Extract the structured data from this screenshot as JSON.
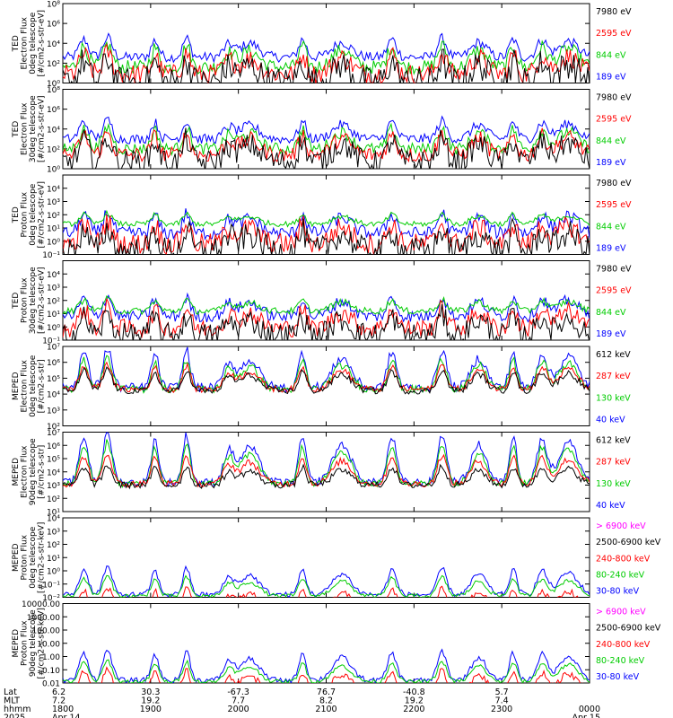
{
  "chart_data": [
    {
      "type": "line",
      "instrument": "TED",
      "ylabel": [
        "TED",
        "Electron Flux",
        "0deg telescope",
        "[#/cm2-s-str-eV]"
      ],
      "log": true,
      "ylim": [
        1,
        100000000
      ],
      "ticks": [
        {
          "v": 1,
          "label": "10⁰"
        },
        {
          "v": 100,
          "label": "10²"
        },
        {
          "v": 10000,
          "label": "10⁴"
        },
        {
          "v": 1000000,
          "label": "10⁶"
        },
        {
          "v": 100000000,
          "label": "10⁸"
        }
      ],
      "series": [
        {
          "name": "7980 eV",
          "color": "#000000",
          "base": 0.1,
          "amp": 2.3,
          "noise": 1.5
        },
        {
          "name": "2595 eV",
          "color": "#ff0000",
          "base": 0.9,
          "amp": 2.2,
          "noise": 1.0
        },
        {
          "name": "844 eV",
          "color": "#00cc00",
          "base": 1.6,
          "amp": 2.3,
          "noise": 0.7
        },
        {
          "name": "189 eV",
          "color": "#0000ff",
          "base": 2.6,
          "amp": 2.0,
          "noise": 0.5
        }
      ]
    },
    {
      "type": "line",
      "instrument": "TED",
      "ylabel": [
        "TED",
        "Electron Flux",
        "30deg telescope",
        "[#/cm2-s-str-eV]"
      ],
      "log": true,
      "ylim": [
        1,
        100000000
      ],
      "ticks": [
        {
          "v": 1,
          "label": "10⁰"
        },
        {
          "v": 100,
          "label": "10²"
        },
        {
          "v": 10000,
          "label": "10⁴"
        },
        {
          "v": 1000000,
          "label": "10⁶"
        },
        {
          "v": 100000000,
          "label": "10⁸"
        }
      ],
      "series": [
        {
          "name": "7980 eV",
          "color": "#000000",
          "base": 0.7,
          "amp": 2.4,
          "noise": 1.2
        },
        {
          "name": "2595 eV",
          "color": "#ff0000",
          "base": 1.4,
          "amp": 2.2,
          "noise": 0.8
        },
        {
          "name": "844 eV",
          "color": "#00cc00",
          "base": 2.0,
          "amp": 2.2,
          "noise": 0.6
        },
        {
          "name": "189 eV",
          "color": "#0000ff",
          "base": 3.0,
          "amp": 1.9,
          "noise": 0.5
        }
      ]
    },
    {
      "type": "line",
      "instrument": "TED",
      "ylabel": [
        "TED",
        "Proton Flux",
        "0deg telescope",
        "[#/cm2-s-str-eV]"
      ],
      "log": true,
      "ylim": [
        0.1,
        100000
      ],
      "ticks": [
        {
          "v": 0.1,
          "label": "10⁻¹"
        },
        {
          "v": 1,
          "label": "10⁰"
        },
        {
          "v": 10,
          "label": "10¹"
        },
        {
          "v": 100,
          "label": "10²"
        },
        {
          "v": 1000,
          "label": "10³"
        },
        {
          "v": 10000,
          "label": "10⁴"
        }
      ],
      "series": [
        {
          "name": "7980 eV",
          "color": "#000000",
          "base": 0.3,
          "amp": 1.6,
          "noise": 1.0
        },
        {
          "name": "2595 eV",
          "color": "#ff0000",
          "base": 0.8,
          "amp": 1.7,
          "noise": 0.8
        },
        {
          "name": "844 eV",
          "color": "#00cc00",
          "base": 2.3,
          "amp": 0.8,
          "noise": 0.2
        },
        {
          "name": "189 eV",
          "color": "#0000ff",
          "base": 1.6,
          "amp": 1.6,
          "noise": 0.5
        }
      ]
    },
    {
      "type": "line",
      "instrument": "TED",
      "ylabel": [
        "TED",
        "Proton Flux",
        "30deg telescope",
        "[#/cm2-s-str-eV]"
      ],
      "log": true,
      "ylim": [
        0.1,
        100000
      ],
      "ticks": [
        {
          "v": 0.1,
          "label": "10⁻¹"
        },
        {
          "v": 1,
          "label": "10⁰"
        },
        {
          "v": 10,
          "label": "10¹"
        },
        {
          "v": 100,
          "label": "10²"
        },
        {
          "v": 1000,
          "label": "10³"
        },
        {
          "v": 10000,
          "label": "10⁴"
        }
      ],
      "series": [
        {
          "name": "7980 eV",
          "color": "#000000",
          "base": 0.4,
          "amp": 1.5,
          "noise": 0.9
        },
        {
          "name": "2595 eV",
          "color": "#ff0000",
          "base": 0.9,
          "amp": 1.6,
          "noise": 0.7
        },
        {
          "name": "844 eV",
          "color": "#00cc00",
          "base": 2.2,
          "amp": 0.9,
          "noise": 0.25
        },
        {
          "name": "189 eV",
          "color": "#0000ff",
          "base": 1.8,
          "amp": 1.5,
          "noise": 0.45
        }
      ]
    },
    {
      "type": "line",
      "instrument": "MEPED",
      "ylabel": [
        "MEPED",
        "Electron Flux",
        "0deg telescope",
        "[#/cm2-s-str]"
      ],
      "log": true,
      "ylim": [
        100,
        10000000
      ],
      "ticks": [
        {
          "v": 100,
          "label": "10²"
        },
        {
          "v": 1000,
          "label": "10³"
        },
        {
          "v": 10000,
          "label": "10⁴"
        },
        {
          "v": 100000,
          "label": "10⁵"
        },
        {
          "v": 1000000,
          "label": "10⁶"
        },
        {
          "v": 10000000,
          "label": "10⁷"
        }
      ],
      "series": [
        {
          "name": "612 keV",
          "color": "#000000",
          "base": 2.2,
          "amp": 1.4,
          "noise": 0.2
        },
        {
          "name": "287 keV",
          "color": "#ff0000",
          "base": 2.3,
          "amp": 1.6,
          "noise": 0.2
        },
        {
          "name": "130 keV",
          "color": "#00cc00",
          "base": 2.3,
          "amp": 2.0,
          "noise": 0.25
        },
        {
          "name": "40 keV",
          "color": "#0000ff",
          "base": 2.4,
          "amp": 2.5,
          "noise": 0.3
        }
      ]
    },
    {
      "type": "line",
      "instrument": "MEPED",
      "ylabel": [
        "MEPED",
        "Electron Flux",
        "90deg telescope",
        "[#/cm2-s-str]"
      ],
      "log": true,
      "ylim": [
        10,
        10000000
      ],
      "ticks": [
        {
          "v": 10,
          "label": "10¹"
        },
        {
          "v": 100,
          "label": "10²"
        },
        {
          "v": 1000,
          "label": "10³"
        },
        {
          "v": 10000,
          "label": "10⁴"
        },
        {
          "v": 100000,
          "label": "10⁵"
        },
        {
          "v": 1000000,
          "label": "10⁶"
        },
        {
          "v": 10000000,
          "label": "10⁷"
        }
      ],
      "series": [
        {
          "name": "612 keV",
          "color": "#000000",
          "base": 2.0,
          "amp": 1.5,
          "noise": 0.25
        },
        {
          "name": "287 keV",
          "color": "#ff0000",
          "base": 2.1,
          "amp": 2.3,
          "noise": 0.25
        },
        {
          "name": "130 keV",
          "color": "#00cc00",
          "base": 2.1,
          "amp": 3.2,
          "noise": 0.25
        },
        {
          "name": "40 keV",
          "color": "#0000ff",
          "base": 2.2,
          "amp": 3.8,
          "noise": 0.3
        }
      ]
    },
    {
      "type": "line",
      "instrument": "MEPED",
      "ylabel": [
        "MEPED",
        "Proton Flux",
        "0deg telescope",
        "[#/cm2-s-str-keV]"
      ],
      "log": true,
      "ylim": [
        0.01,
        10000
      ],
      "ticks": [
        {
          "v": 0.01,
          "label": "10⁻²"
        },
        {
          "v": 0.1,
          "label": "10⁻¹"
        },
        {
          "v": 1,
          "label": "10⁰"
        },
        {
          "v": 10,
          "label": "10¹"
        },
        {
          "v": 100,
          "label": "10²"
        },
        {
          "v": 1000,
          "label": "10³"
        },
        {
          "v": 10000,
          "label": "10⁴"
        }
      ],
      "series": [
        {
          "name": "> 6900 keV",
          "color": "#ff00ff",
          "base": -1.9,
          "amp": 0.7,
          "noise": 0.1
        },
        {
          "name": "2500-6900 keV",
          "color": "#000000",
          "base": -1.4,
          "amp": 1.0,
          "noise": 0.2
        },
        {
          "name": "240-800 keV",
          "color": "#ff0000",
          "base": -0.8,
          "amp": 1.5,
          "noise": 0.25
        },
        {
          "name": "80-240 keV",
          "color": "#00cc00",
          "base": 0.1,
          "amp": 1.5,
          "noise": 0.15
        },
        {
          "name": "30-80 keV",
          "color": "#0000ff",
          "base": 0.2,
          "amp": 2.1,
          "noise": 0.2
        }
      ]
    },
    {
      "type": "line",
      "instrument": "MEPED",
      "ylabel": [
        "MEPED",
        "Proton Flux",
        "90deg telescope",
        "[#/cm2-s-str-keV]"
      ],
      "log": true,
      "ylim": [
        0.01,
        10000
      ],
      "ticks": [
        {
          "v": 0.01,
          "label": "0.01"
        },
        {
          "v": 0.1,
          "label": "0.10"
        },
        {
          "v": 1,
          "label": "1.00"
        },
        {
          "v": 10,
          "label": "10.00"
        },
        {
          "v": 100,
          "label": "100.00"
        },
        {
          "v": 1000,
          "label": "1000.00"
        },
        {
          "v": 10000,
          "label": "10000.00"
        }
      ],
      "series": [
        {
          "name": "> 6900 keV",
          "color": "#ff00ff",
          "base": -1.8,
          "amp": 0.8,
          "noise": 0.1
        },
        {
          "name": "2500-6900 keV",
          "color": "#000000",
          "base": -1.3,
          "amp": 1.1,
          "noise": 0.2
        },
        {
          "name": "240-800 keV",
          "color": "#ff0000",
          "base": -0.6,
          "amp": 1.6,
          "noise": 0.25
        },
        {
          "name": "80-240 keV",
          "color": "#00cc00",
          "base": 0.1,
          "amp": 1.6,
          "noise": 0.15
        },
        {
          "name": "30-80 keV",
          "color": "#0000ff",
          "base": 0.2,
          "amp": 2.3,
          "noise": 0.2
        }
      ]
    }
  ],
  "passes": [
    {
      "center": 0.04,
      "width": 0.012,
      "strength": 0.9
    },
    {
      "center": 0.085,
      "width": 0.012,
      "strength": 1.0
    },
    {
      "center": 0.175,
      "width": 0.01,
      "strength": 0.85
    },
    {
      "center": 0.235,
      "width": 0.01,
      "strength": 0.95
    },
    {
      "center": 0.315,
      "width": 0.014,
      "strength": 0.6
    },
    {
      "center": 0.355,
      "width": 0.025,
      "strength": 0.7
    },
    {
      "center": 0.455,
      "width": 0.01,
      "strength": 0.9
    },
    {
      "center": 0.53,
      "width": 0.025,
      "strength": 0.75
    },
    {
      "center": 0.625,
      "width": 0.012,
      "strength": 0.9
    },
    {
      "center": 0.72,
      "width": 0.012,
      "strength": 0.95
    },
    {
      "center": 0.79,
      "width": 0.02,
      "strength": 0.75
    },
    {
      "center": 0.855,
      "width": 0.01,
      "strength": 0.9
    },
    {
      "center": 0.91,
      "width": 0.014,
      "strength": 0.85
    },
    {
      "center": 0.96,
      "width": 0.025,
      "strength": 0.8
    }
  ],
  "x_axis": {
    "row_labels": [
      "Lat",
      "MLT",
      "hhmm",
      "2025"
    ],
    "ticks": [
      {
        "t": 0.0,
        "lat": "6.2",
        "mlt": "7.2",
        "hhmm": "1800",
        "date": "Apr 14"
      },
      {
        "t": 0.1667,
        "lat": "30.3",
        "mlt": "19.2",
        "hhmm": "1900",
        "date": ""
      },
      {
        "t": 0.3333,
        "lat": "-67.3",
        "mlt": "7.7",
        "hhmm": "2000",
        "date": ""
      },
      {
        "t": 0.5,
        "lat": "76.7",
        "mlt": "8.2",
        "hhmm": "2100",
        "date": ""
      },
      {
        "t": 0.6667,
        "lat": "-40.8",
        "mlt": "19.2",
        "hhmm": "2200",
        "date": ""
      },
      {
        "t": 0.8333,
        "lat": "5.7",
        "mlt": "7.4",
        "hhmm": "2300",
        "date": ""
      },
      {
        "t": 1.0,
        "lat": "",
        "mlt": "",
        "hhmm": "0000",
        "date": "Apr 15"
      }
    ]
  }
}
